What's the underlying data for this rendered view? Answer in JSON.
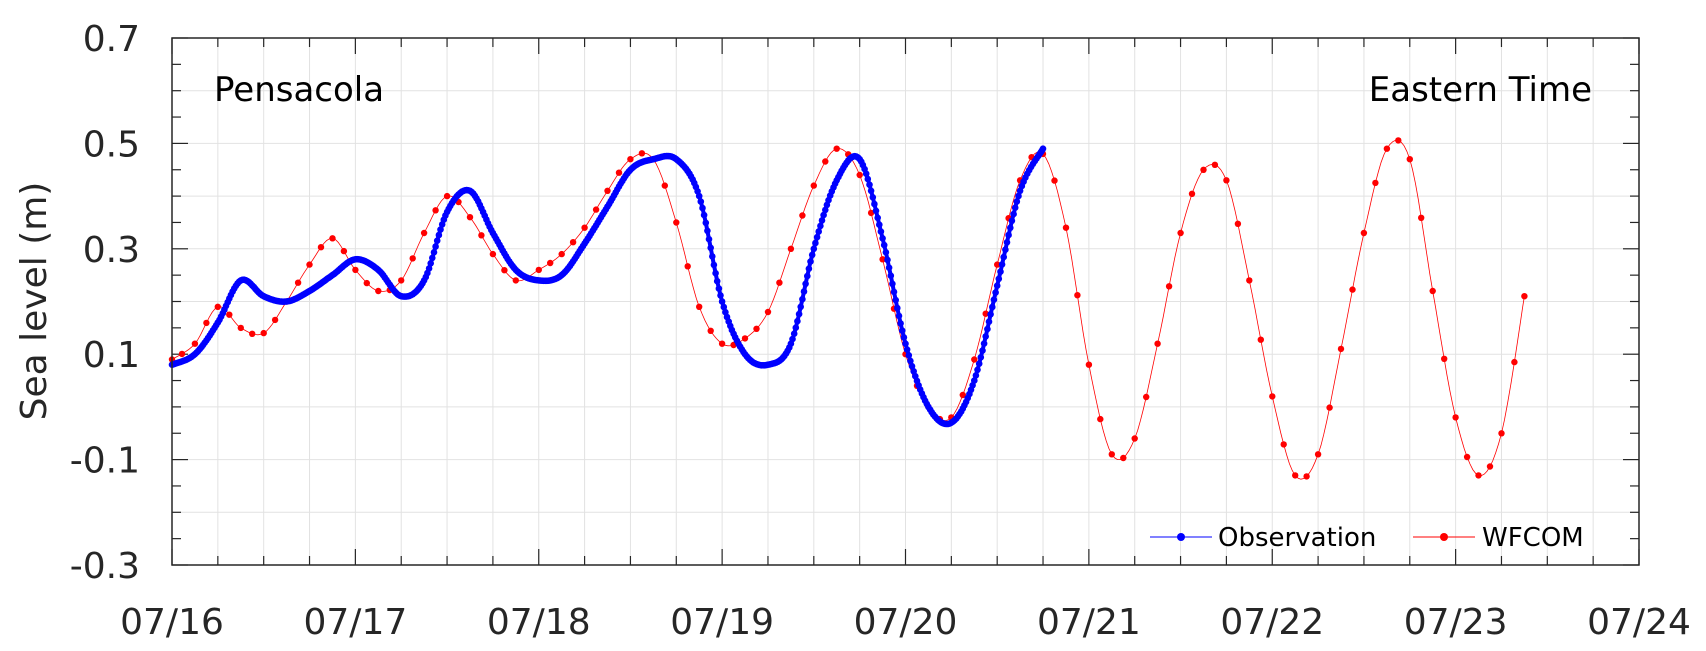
{
  "chart_data": {
    "type": "line",
    "title": "",
    "xlabel": "",
    "ylabel": "Sea level (m)",
    "xlim": [
      "07/16",
      "07/24"
    ],
    "ylim": [
      -0.3,
      0.7
    ],
    "x_ticks": [
      "07/16",
      "07/17",
      "07/18",
      "07/19",
      "07/20",
      "07/21",
      "07/22",
      "07/23",
      "07/24"
    ],
    "y_ticks": [
      "-0.3",
      "-0.1",
      "0.1",
      "0.3",
      "0.5",
      "0.7"
    ],
    "y_tick_values": [
      -0.3,
      -0.1,
      0.1,
      0.3,
      0.5,
      0.7
    ],
    "grid": true,
    "legend_position": "bottom-right",
    "annotations": {
      "station": "Pensacola",
      "timezone": "Eastern Time"
    },
    "series": [
      {
        "name": "Observation",
        "color": "#0000ff",
        "marker": "dot",
        "x": [
          "07/16 00:00",
          "07/16 03:00",
          "07/16 06:00",
          "07/16 09:00",
          "07/16 12:00",
          "07/16 15:00",
          "07/16 18:00",
          "07/16 21:00",
          "07/17 00:00",
          "07/17 03:00",
          "07/17 06:00",
          "07/17 09:00",
          "07/17 12:00",
          "07/17 15:00",
          "07/17 18:00",
          "07/17 21:00",
          "07/18 00:00",
          "07/18 03:00",
          "07/18 06:00",
          "07/18 09:00",
          "07/18 12:00",
          "07/18 15:00",
          "07/18 18:00",
          "07/18 21:00",
          "07/19 00:00",
          "07/19 03:00",
          "07/19 06:00",
          "07/19 09:00",
          "07/19 12:00",
          "07/19 15:00",
          "07/19 18:00",
          "07/19 21:00",
          "07/20 00:00",
          "07/20 03:00",
          "07/20 06:00",
          "07/20 09:00",
          "07/20 12:00",
          "07/20 15:00",
          "07/20 18:00"
        ],
        "y": [
          0.08,
          0.1,
          0.16,
          0.24,
          0.21,
          0.2,
          0.22,
          0.25,
          0.28,
          0.26,
          0.21,
          0.24,
          0.37,
          0.41,
          0.33,
          0.26,
          0.24,
          0.25,
          0.31,
          0.38,
          0.45,
          0.47,
          0.47,
          0.4,
          0.2,
          0.1,
          0.08,
          0.12,
          0.3,
          0.43,
          0.47,
          0.32,
          0.12,
          0.0,
          -0.03,
          0.05,
          0.23,
          0.41,
          0.49
        ]
      },
      {
        "name": "WFCOM",
        "color": "#ff0000",
        "marker": "dot",
        "x": [
          "07/16 00:00",
          "07/16 03:00",
          "07/16 06:00",
          "07/16 09:00",
          "07/16 12:00",
          "07/16 15:00",
          "07/16 18:00",
          "07/16 21:00",
          "07/17 00:00",
          "07/17 03:00",
          "07/17 06:00",
          "07/17 09:00",
          "07/17 12:00",
          "07/17 15:00",
          "07/17 18:00",
          "07/17 21:00",
          "07/18 00:00",
          "07/18 03:00",
          "07/18 06:00",
          "07/18 09:00",
          "07/18 12:00",
          "07/18 15:00",
          "07/18 18:00",
          "07/18 21:00",
          "07/19 00:00",
          "07/19 03:00",
          "07/19 06:00",
          "07/19 09:00",
          "07/19 12:00",
          "07/19 15:00",
          "07/19 18:00",
          "07/19 21:00",
          "07/20 00:00",
          "07/20 03:00",
          "07/20 06:00",
          "07/20 09:00",
          "07/20 12:00",
          "07/20 15:00",
          "07/20 18:00",
          "07/20 21:00",
          "07/21 00:00",
          "07/21 03:00",
          "07/21 06:00",
          "07/21 09:00",
          "07/21 12:00",
          "07/21 15:00",
          "07/21 18:00",
          "07/21 21:00",
          "07/22 00:00",
          "07/22 03:00",
          "07/22 06:00",
          "07/22 09:00",
          "07/22 12:00",
          "07/22 15:00",
          "07/22 18:00",
          "07/22 21:00",
          "07/23 00:00",
          "07/23 03:00",
          "07/23 06:00",
          "07/23 09:00"
        ],
        "y": [
          0.09,
          0.12,
          0.19,
          0.15,
          0.14,
          0.2,
          0.27,
          0.32,
          0.26,
          0.22,
          0.24,
          0.33,
          0.4,
          0.36,
          0.29,
          0.24,
          0.26,
          0.29,
          0.34,
          0.41,
          0.47,
          0.47,
          0.35,
          0.19,
          0.12,
          0.13,
          0.18,
          0.3,
          0.42,
          0.49,
          0.44,
          0.28,
          0.1,
          0.0,
          -0.02,
          0.09,
          0.27,
          0.43,
          0.48,
          0.34,
          0.08,
          -0.09,
          -0.06,
          0.12,
          0.33,
          0.45,
          0.43,
          0.24,
          0.02,
          -0.13,
          -0.09,
          0.11,
          0.33,
          0.49,
          0.47,
          0.22,
          -0.02,
          -0.13,
          -0.05,
          0.21
        ]
      }
    ]
  }
}
